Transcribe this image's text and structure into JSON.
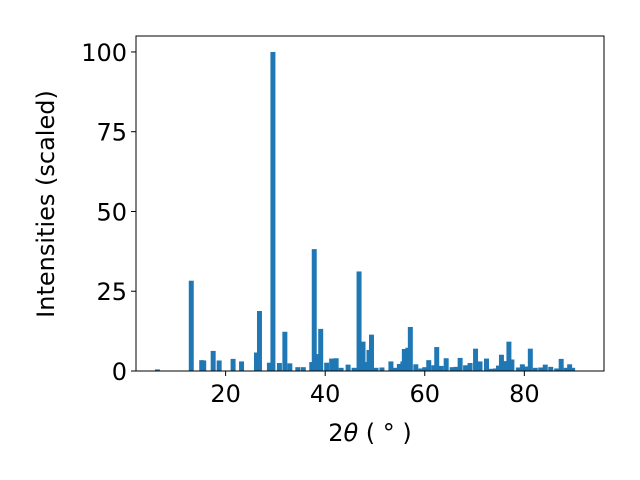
{
  "chart_data": {
    "type": "bar",
    "xlabel": {
      "prefix": "2",
      "symbol": "θ",
      "suffix": " ( ° )"
    },
    "ylabel": "Intensities (scaled)",
    "xlim": [
      2,
      96
    ],
    "ylim": [
      0,
      105
    ],
    "xticks": [
      20,
      40,
      60,
      80
    ],
    "yticks": [
      0,
      25,
      50,
      75,
      100
    ],
    "bar_width_units": 1,
    "bar_color": "#1f77b4",
    "grid": false,
    "legend": "none",
    "series": [
      {
        "x": [
          6.3,
          13.1,
          15.2,
          15.6,
          17.5,
          18.7,
          21.5,
          23.2,
          26.2,
          26.8,
          28.8,
          29.5,
          30.8,
          31.9,
          32.9,
          34.5,
          35.6,
          37.3,
          37.8,
          38.4,
          39.1,
          40.3,
          41.3,
          42.2,
          43.2,
          44.6,
          45.8,
          46.8,
          47.6,
          48.2,
          48.8,
          49.3,
          50.2,
          51.4,
          53.2,
          54.1,
          54.9,
          55.6,
          55.9,
          56.6,
          57.1,
          58.2,
          59.2,
          60.0,
          60.8,
          61.8,
          62.4,
          63.3,
          64.3,
          65.5,
          66.3,
          67.1,
          68.2,
          69.1,
          70.2,
          71.1,
          72.4,
          73.3,
          74.2,
          74.8,
          75.4,
          76.2,
          76.9,
          77.5,
          78.8,
          79.6,
          80.3,
          81.2,
          82.2,
          83.3,
          84.2,
          85.3,
          86.5,
          87.4,
          88.4,
          89.1,
          89.7
        ],
        "values": [
          0.5,
          28.3,
          3.4,
          3.3,
          6.3,
          3.3,
          3.8,
          3.0,
          5.8,
          18.8,
          2.6,
          100,
          2.5,
          12.3,
          2.4,
          1.2,
          1.2,
          2.8,
          38.2,
          5.3,
          13.2,
          2.6,
          3.9,
          4.0,
          1.0,
          2.0,
          1.0,
          31.2,
          9.2,
          2.8,
          6.6,
          11.4,
          1.0,
          1.1,
          3.0,
          1.0,
          2.2,
          3.0,
          6.9,
          7.3,
          13.8,
          2.1,
          0.8,
          1.2,
          3.4,
          1.8,
          7.5,
          1.6,
          4.0,
          1.2,
          1.3,
          4.1,
          1.8,
          2.5,
          7.0,
          3.0,
          3.9,
          0.7,
          0.8,
          1.7,
          5.1,
          3.1,
          9.2,
          3.6,
          1.1,
          2.1,
          1.4,
          7.0,
          1.0,
          1.1,
          2.0,
          1.3,
          0.8,
          3.8,
          1.0,
          2.1,
          1.0
        ]
      }
    ]
  }
}
